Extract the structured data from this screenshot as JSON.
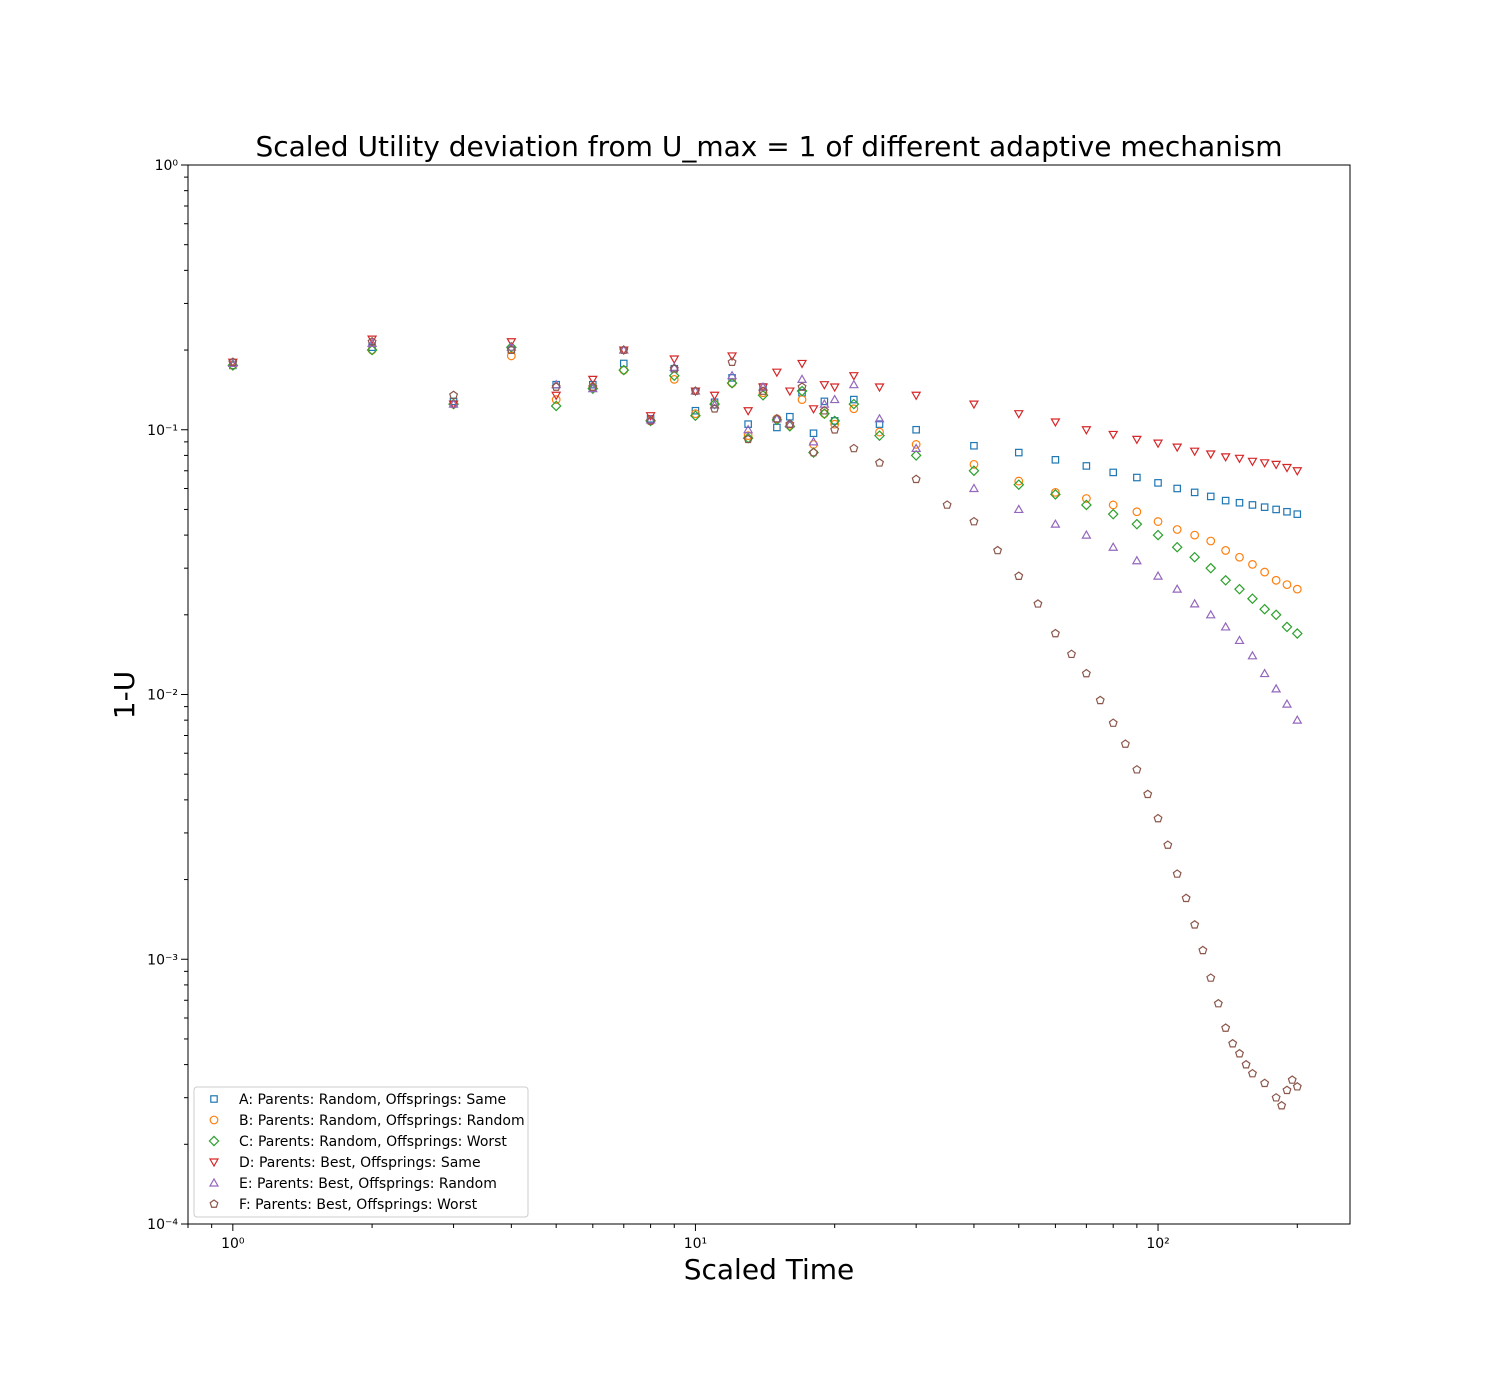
{
  "chart_data": {
    "type": "scatter",
    "title": "Scaled Utility deviation from U_max = 1 of different adaptive mechanism",
    "xlabel": "Scaled Time",
    "ylabel": "1-U",
    "x_scale": "log",
    "y_scale": "log",
    "xlim": [
      0.8,
      260
    ],
    "ylim": [
      0.0001,
      1
    ],
    "x_ticks": [
      {
        "value": 1,
        "label": "10⁰"
      },
      {
        "value": 10,
        "label": "10¹"
      },
      {
        "value": 100,
        "label": "10²"
      }
    ],
    "y_ticks": [
      {
        "value": 1,
        "label": "10⁰"
      },
      {
        "value": 0.1,
        "label": "10⁻¹"
      },
      {
        "value": 0.01,
        "label": "10⁻²"
      },
      {
        "value": 0.001,
        "label": "10⁻³"
      },
      {
        "value": 0.0001,
        "label": "10⁻⁴"
      }
    ],
    "grid": false,
    "legend_position": "lower-left",
    "series": [
      {
        "name": "A: Parents: Random, Offsprings: Same",
        "marker": "square",
        "color": "#1f77b4",
        "points": [
          [
            1,
            0.175
          ],
          [
            2,
            0.205
          ],
          [
            3,
            0.128
          ],
          [
            4,
            0.2
          ],
          [
            5,
            0.148
          ],
          [
            6,
            0.148
          ],
          [
            7,
            0.178
          ],
          [
            8,
            0.11
          ],
          [
            9,
            0.17
          ],
          [
            10,
            0.118
          ],
          [
            11,
            0.127
          ],
          [
            12,
            0.157
          ],
          [
            13,
            0.105
          ],
          [
            14,
            0.145
          ],
          [
            15,
            0.102
          ],
          [
            16,
            0.112
          ],
          [
            17,
            0.138
          ],
          [
            18,
            0.097
          ],
          [
            19,
            0.128
          ],
          [
            20,
            0.108
          ],
          [
            22,
            0.13
          ],
          [
            25,
            0.105
          ],
          [
            30,
            0.1
          ],
          [
            40,
            0.087
          ],
          [
            50,
            0.082
          ],
          [
            60,
            0.077
          ],
          [
            70,
            0.073
          ],
          [
            80,
            0.069
          ],
          [
            90,
            0.066
          ],
          [
            100,
            0.063
          ],
          [
            110,
            0.06
          ],
          [
            120,
            0.058
          ],
          [
            130,
            0.056
          ],
          [
            140,
            0.054
          ],
          [
            150,
            0.053
          ],
          [
            160,
            0.052
          ],
          [
            170,
            0.051
          ],
          [
            180,
            0.05
          ],
          [
            190,
            0.049
          ],
          [
            200,
            0.048
          ]
        ]
      },
      {
        "name": "B: Parents: Random, Offsprings: Random",
        "marker": "circle",
        "color": "#ff7f0e",
        "points": [
          [
            1,
            0.175
          ],
          [
            2,
            0.2
          ],
          [
            3,
            0.125
          ],
          [
            4,
            0.19
          ],
          [
            5,
            0.13
          ],
          [
            6,
            0.145
          ],
          [
            7,
            0.168
          ],
          [
            8,
            0.108
          ],
          [
            9,
            0.155
          ],
          [
            10,
            0.115
          ],
          [
            11,
            0.125
          ],
          [
            12,
            0.15
          ],
          [
            13,
            0.095
          ],
          [
            14,
            0.138
          ],
          [
            15,
            0.11
          ],
          [
            16,
            0.104
          ],
          [
            17,
            0.13
          ],
          [
            18,
            0.088
          ],
          [
            19,
            0.115
          ],
          [
            20,
            0.105
          ],
          [
            22,
            0.12
          ],
          [
            25,
            0.098
          ],
          [
            30,
            0.088
          ],
          [
            40,
            0.074
          ],
          [
            50,
            0.064
          ],
          [
            60,
            0.058
          ],
          [
            70,
            0.055
          ],
          [
            80,
            0.052
          ],
          [
            90,
            0.049
          ],
          [
            100,
            0.045
          ],
          [
            110,
            0.042
          ],
          [
            120,
            0.04
          ],
          [
            130,
            0.038
          ],
          [
            140,
            0.035
          ],
          [
            150,
            0.033
          ],
          [
            160,
            0.031
          ],
          [
            170,
            0.029
          ],
          [
            180,
            0.027
          ],
          [
            190,
            0.026
          ],
          [
            200,
            0.025
          ]
        ]
      },
      {
        "name": "C: Parents: Random, Offsprings: Worst",
        "marker": "diamond",
        "color": "#2ca02c",
        "points": [
          [
            1,
            0.175
          ],
          [
            2,
            0.2
          ],
          [
            3,
            0.125
          ],
          [
            4,
            0.205
          ],
          [
            5,
            0.123
          ],
          [
            6,
            0.143
          ],
          [
            7,
            0.168
          ],
          [
            8,
            0.108
          ],
          [
            9,
            0.16
          ],
          [
            10,
            0.113
          ],
          [
            11,
            0.125
          ],
          [
            12,
            0.15
          ],
          [
            13,
            0.093
          ],
          [
            14,
            0.135
          ],
          [
            15,
            0.109
          ],
          [
            16,
            0.103
          ],
          [
            17,
            0.14
          ],
          [
            18,
            0.082
          ],
          [
            19,
            0.115
          ],
          [
            20,
            0.108
          ],
          [
            22,
            0.125
          ],
          [
            25,
            0.095
          ],
          [
            30,
            0.08
          ],
          [
            40,
            0.07
          ],
          [
            50,
            0.062
          ],
          [
            60,
            0.057
          ],
          [
            70,
            0.052
          ],
          [
            80,
            0.048
          ],
          [
            90,
            0.044
          ],
          [
            100,
            0.04
          ],
          [
            110,
            0.036
          ],
          [
            120,
            0.033
          ],
          [
            130,
            0.03
          ],
          [
            140,
            0.027
          ],
          [
            150,
            0.025
          ],
          [
            160,
            0.023
          ],
          [
            170,
            0.021
          ],
          [
            180,
            0.02
          ],
          [
            190,
            0.018
          ],
          [
            200,
            0.017
          ]
        ]
      },
      {
        "name": "D: Parents: Best, Offsprings: Same",
        "marker": "triangle-down",
        "color": "#d62728",
        "points": [
          [
            1,
            0.18
          ],
          [
            2,
            0.22
          ],
          [
            3,
            0.125
          ],
          [
            4,
            0.215
          ],
          [
            5,
            0.135
          ],
          [
            6,
            0.155
          ],
          [
            7,
            0.2
          ],
          [
            8,
            0.113
          ],
          [
            9,
            0.185
          ],
          [
            10,
            0.14
          ],
          [
            11,
            0.135
          ],
          [
            12,
            0.19
          ],
          [
            13,
            0.118
          ],
          [
            14,
            0.145
          ],
          [
            15,
            0.165
          ],
          [
            16,
            0.14
          ],
          [
            17,
            0.178
          ],
          [
            18,
            0.12
          ],
          [
            19,
            0.148
          ],
          [
            20,
            0.145
          ],
          [
            22,
            0.16
          ],
          [
            25,
            0.145
          ],
          [
            30,
            0.135
          ],
          [
            40,
            0.125
          ],
          [
            50,
            0.115
          ],
          [
            60,
            0.107
          ],
          [
            70,
            0.1
          ],
          [
            80,
            0.096
          ],
          [
            90,
            0.092
          ],
          [
            100,
            0.089
          ],
          [
            110,
            0.086
          ],
          [
            120,
            0.083
          ],
          [
            130,
            0.081
          ],
          [
            140,
            0.079
          ],
          [
            150,
            0.078
          ],
          [
            160,
            0.076
          ],
          [
            170,
            0.075
          ],
          [
            180,
            0.074
          ],
          [
            190,
            0.072
          ],
          [
            200,
            0.07
          ]
        ]
      },
      {
        "name": "E: Parents: Best, Offsprings: Random",
        "marker": "triangle-up",
        "color": "#9467bd",
        "points": [
          [
            1,
            0.178
          ],
          [
            2,
            0.212
          ],
          [
            3,
            0.125
          ],
          [
            4,
            0.205
          ],
          [
            5,
            0.148
          ],
          [
            6,
            0.143
          ],
          [
            7,
            0.2
          ],
          [
            8,
            0.109
          ],
          [
            9,
            0.172
          ],
          [
            10,
            0.14
          ],
          [
            11,
            0.124
          ],
          [
            12,
            0.16
          ],
          [
            13,
            0.1
          ],
          [
            14,
            0.145
          ],
          [
            15,
            0.11
          ],
          [
            16,
            0.105
          ],
          [
            17,
            0.155
          ],
          [
            18,
            0.09
          ],
          [
            19,
            0.125
          ],
          [
            20,
            0.13
          ],
          [
            22,
            0.148
          ],
          [
            25,
            0.11
          ],
          [
            30,
            0.085
          ],
          [
            40,
            0.06
          ],
          [
            50,
            0.05
          ],
          [
            60,
            0.044
          ],
          [
            70,
            0.04
          ],
          [
            80,
            0.036
          ],
          [
            90,
            0.032
          ],
          [
            100,
            0.028
          ],
          [
            110,
            0.025
          ],
          [
            120,
            0.022
          ],
          [
            130,
            0.02
          ],
          [
            140,
            0.018
          ],
          [
            150,
            0.016
          ],
          [
            160,
            0.014
          ],
          [
            170,
            0.012
          ],
          [
            180,
            0.0105
          ],
          [
            190,
            0.0092
          ],
          [
            200,
            0.008
          ]
        ]
      },
      {
        "name": "F: Parents: Best, Offsprings: Worst",
        "marker": "pentagon",
        "color": "#8c564b",
        "points": [
          [
            1,
            0.18
          ],
          [
            2,
            0.215
          ],
          [
            3,
            0.135
          ],
          [
            4,
            0.2
          ],
          [
            5,
            0.145
          ],
          [
            6,
            0.145
          ],
          [
            7,
            0.2
          ],
          [
            8,
            0.108
          ],
          [
            9,
            0.17
          ],
          [
            10,
            0.14
          ],
          [
            11,
            0.12
          ],
          [
            12,
            0.18
          ],
          [
            13,
            0.092
          ],
          [
            14,
            0.14
          ],
          [
            15,
            0.11
          ],
          [
            16,
            0.105
          ],
          [
            17,
            0.145
          ],
          [
            18,
            0.082
          ],
          [
            19,
            0.118
          ],
          [
            20,
            0.1
          ],
          [
            22,
            0.085
          ],
          [
            25,
            0.075
          ],
          [
            30,
            0.065
          ],
          [
            35,
            0.052
          ],
          [
            40,
            0.045
          ],
          [
            45,
            0.035
          ],
          [
            50,
            0.028
          ],
          [
            55,
            0.022
          ],
          [
            60,
            0.017
          ],
          [
            65,
            0.0142
          ],
          [
            70,
            0.012
          ],
          [
            75,
            0.0095
          ],
          [
            80,
            0.0078
          ],
          [
            85,
            0.0065
          ],
          [
            90,
            0.0052
          ],
          [
            95,
            0.0042
          ],
          [
            100,
            0.0034
          ],
          [
            105,
            0.0027
          ],
          [
            110,
            0.0021
          ],
          [
            115,
            0.0017
          ],
          [
            120,
            0.00135
          ],
          [
            125,
            0.00108
          ],
          [
            130,
            0.00085
          ],
          [
            135,
            0.00068
          ],
          [
            140,
            0.00055
          ],
          [
            145,
            0.00048
          ],
          [
            150,
            0.00044
          ],
          [
            155,
            0.0004
          ],
          [
            160,
            0.00037
          ],
          [
            170,
            0.00034
          ],
          [
            180,
            0.0003
          ],
          [
            185,
            0.00028
          ],
          [
            190,
            0.00032
          ],
          [
            195,
            0.00035
          ],
          [
            200,
            0.00033
          ]
        ]
      }
    ]
  }
}
